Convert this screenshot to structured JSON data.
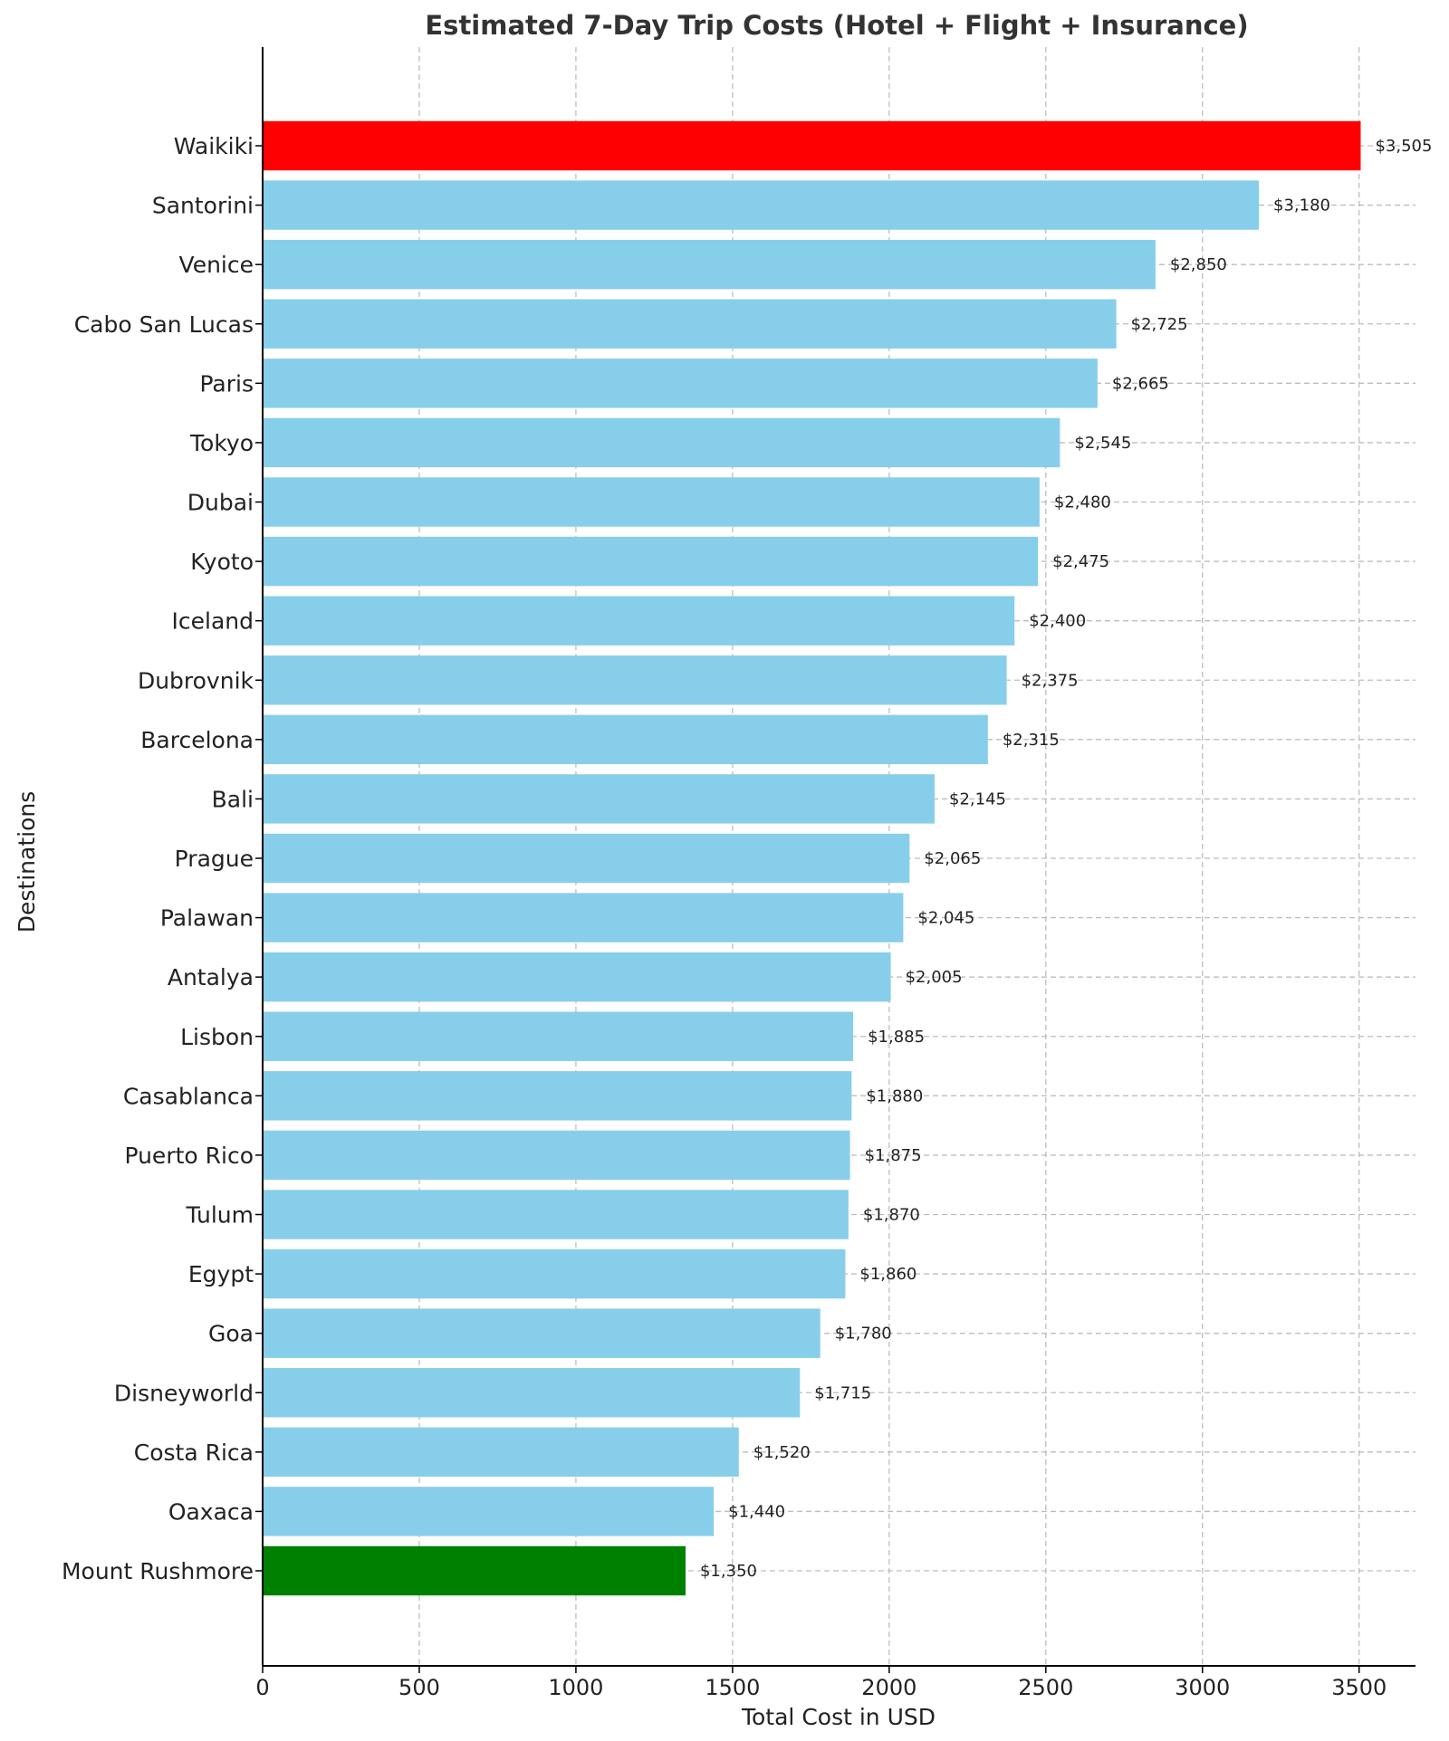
{
  "chart_data": {
    "type": "bar",
    "orientation": "horizontal",
    "title": "Estimated 7-Day Trip Costs (Hotel + Flight + Insurance)",
    "xlabel": "Total Cost in USD",
    "ylabel": "Destinations",
    "xlim": [
      0,
      3680
    ],
    "xticks": [
      0,
      500,
      1000,
      1500,
      2000,
      2500,
      3000,
      3500
    ],
    "grid": true,
    "categories": [
      "Waikiki",
      "Santorini",
      "Venice",
      "Cabo San Lucas",
      "Paris",
      "Tokyo",
      "Dubai",
      "Kyoto",
      "Iceland",
      "Dubrovnik",
      "Barcelona",
      "Bali",
      "Prague",
      "Palawan",
      "Antalya",
      "Lisbon",
      "Casablanca",
      "Puerto Rico",
      "Tulum",
      "Egypt",
      "Goa",
      "Disneyworld",
      "Costa Rica",
      "Oaxaca",
      "Mount Rushmore"
    ],
    "values": [
      3505,
      3180,
      2850,
      2725,
      2665,
      2545,
      2480,
      2475,
      2400,
      2375,
      2315,
      2145,
      2065,
      2045,
      2005,
      1885,
      1880,
      1875,
      1870,
      1860,
      1780,
      1715,
      1520,
      1440,
      1350
    ],
    "value_labels": [
      "$3,505",
      "$3,180",
      "$2,850",
      "$2,725",
      "$2,665",
      "$2,545",
      "$2,480",
      "$2,475",
      "$2,400",
      "$2,375",
      "$2,315",
      "$2,145",
      "$2,065",
      "$2,045",
      "$2,005",
      "$1,885",
      "$1,880",
      "$1,875",
      "$1,870",
      "$1,860",
      "$1,780",
      "$1,715",
      "$1,520",
      "$1,440",
      "$1,350"
    ],
    "colors": {
      "default": "#87CEEB",
      "highest": "#FF0000",
      "lowest": "#008000"
    }
  }
}
